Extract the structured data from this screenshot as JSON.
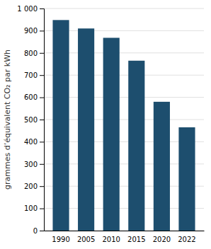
{
  "chart_data": {
    "type": "bar",
    "categories": [
      "1990",
      "2005",
      "2010",
      "2015",
      "2020",
      "2022"
    ],
    "values": [
      948,
      910,
      868,
      765,
      580,
      465
    ],
    "color": "#1d4e6e",
    "ylabel": "grammes d’équivalent CO₂ par kWh",
    "ylim": [
      0,
      1000
    ],
    "yticks": [
      0,
      100,
      200,
      300,
      400,
      500,
      600,
      700,
      800,
      900,
      {
        "value": 1000,
        "label": "1 000"
      }
    ],
    "grid": true
  }
}
